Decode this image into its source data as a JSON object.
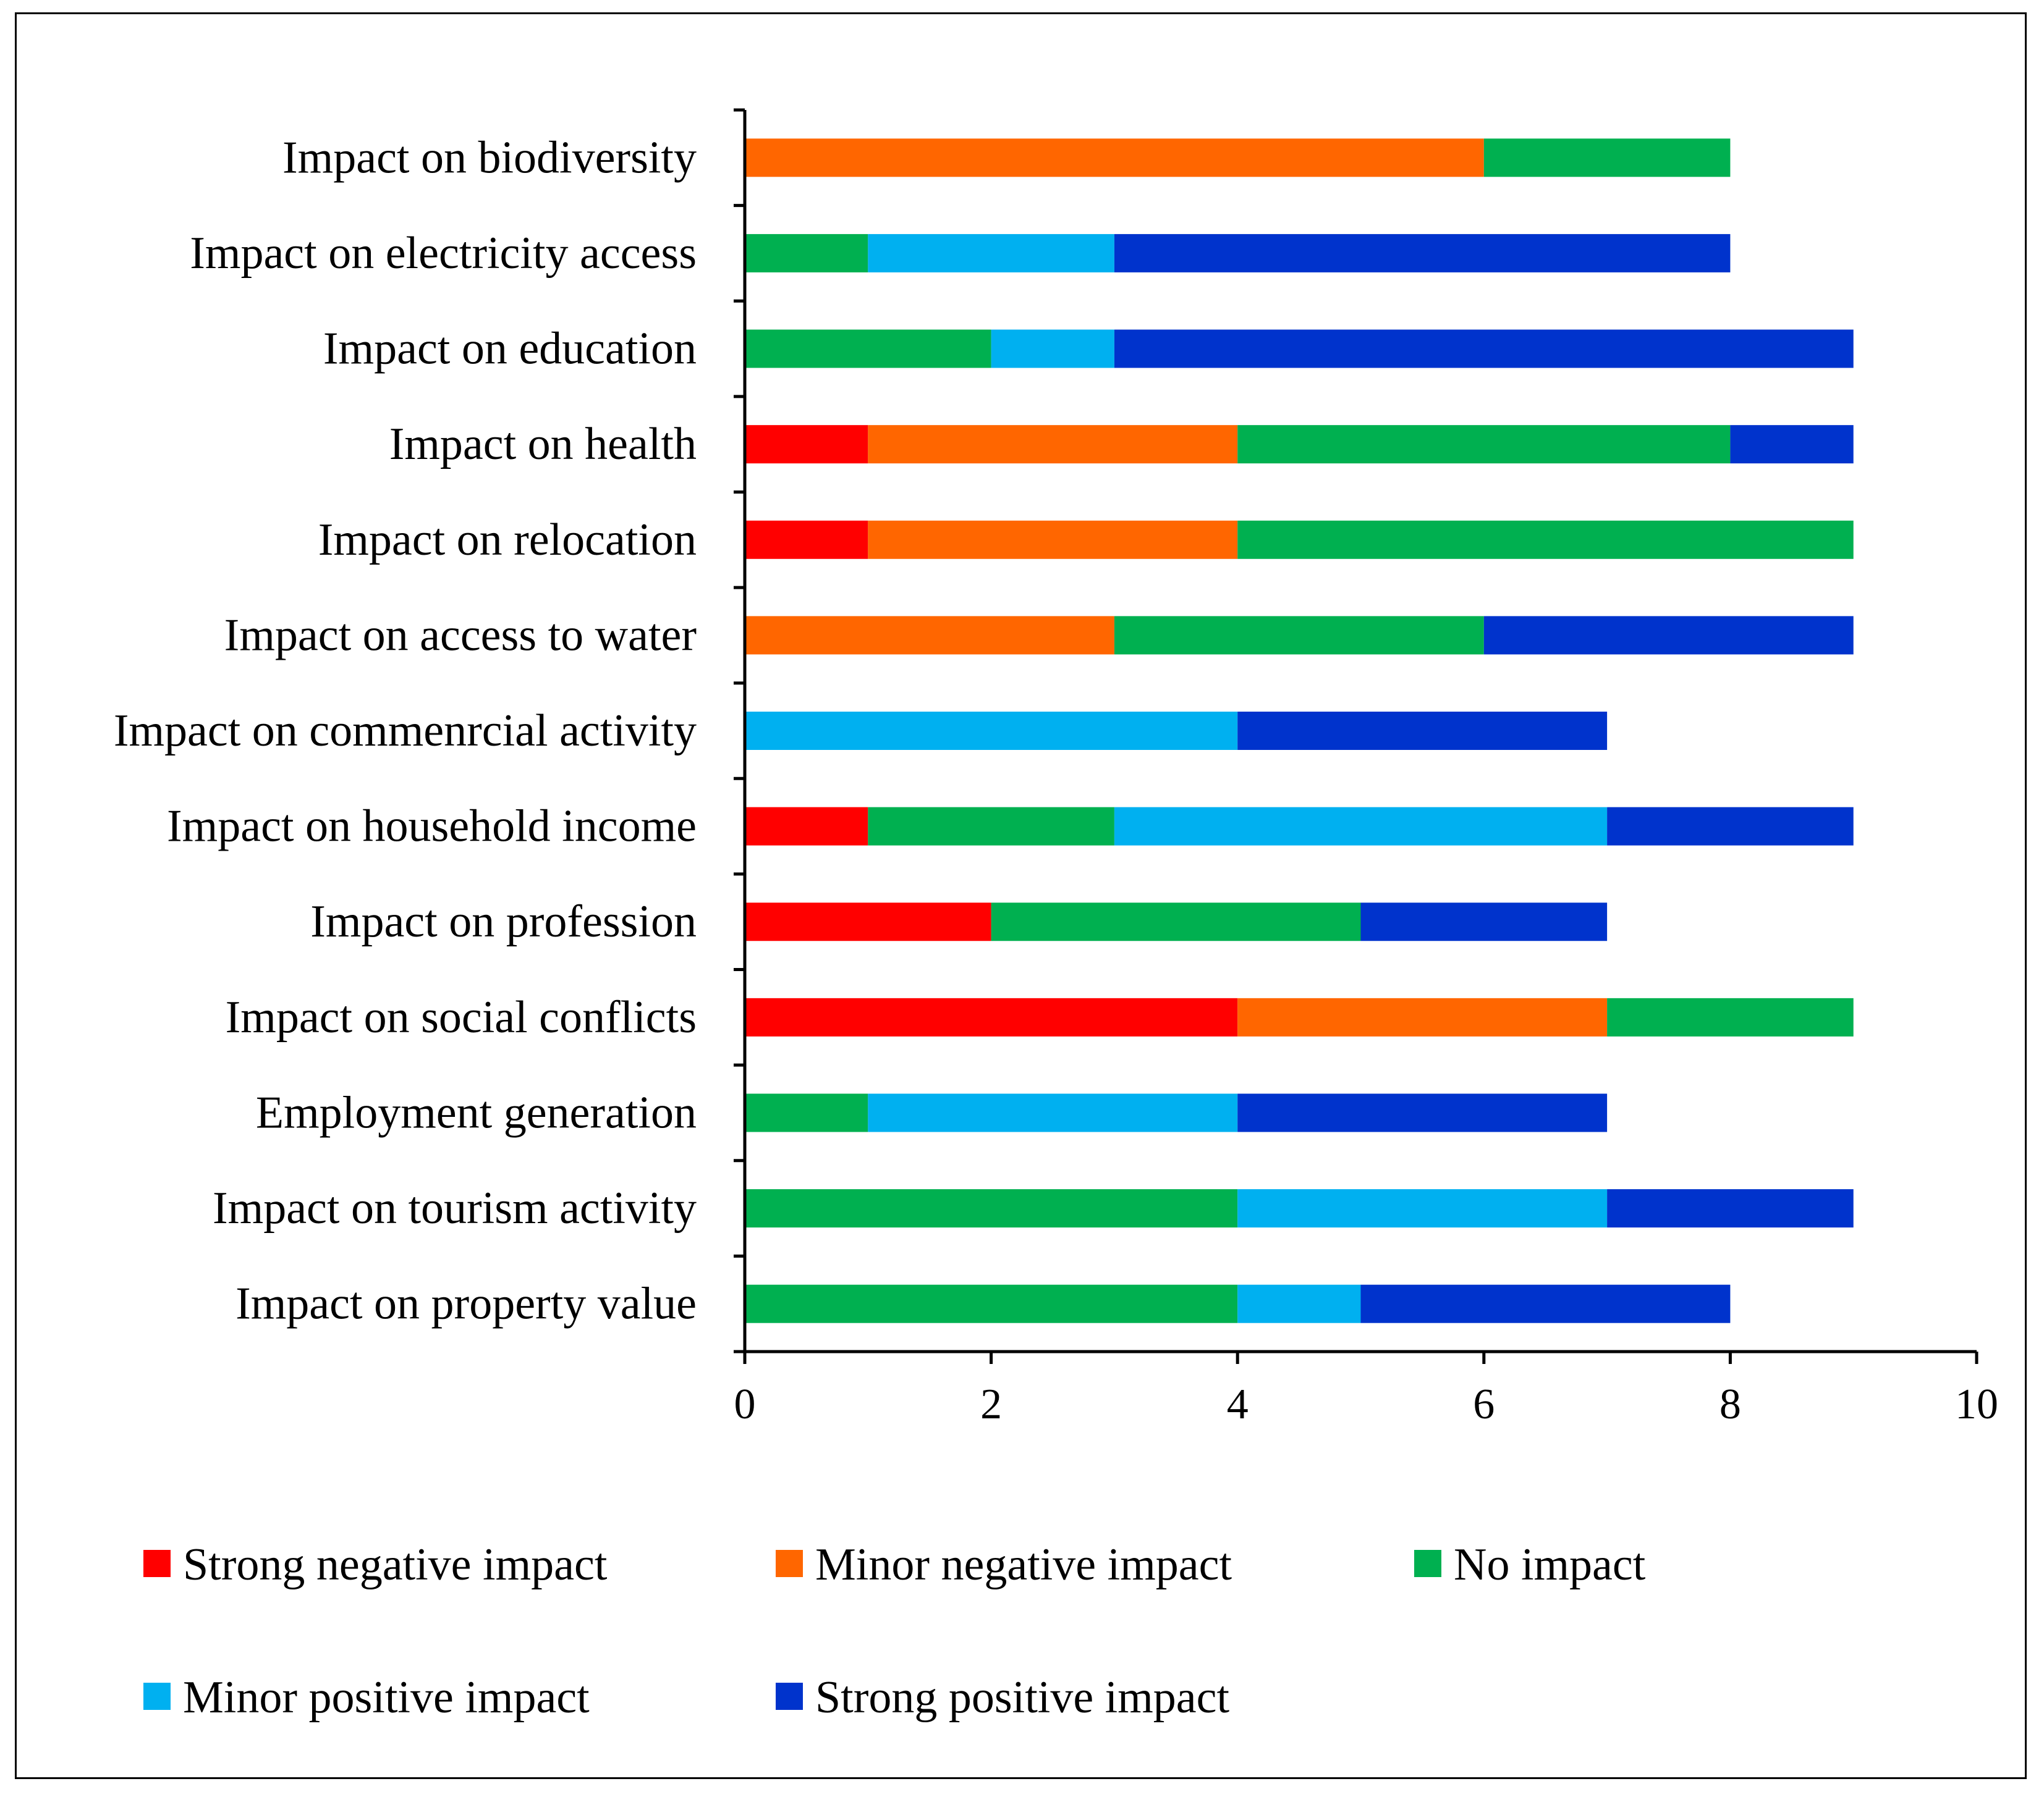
{
  "chart_data": {
    "type": "bar",
    "orientation": "horizontal",
    "stacked": true,
    "categories": [
      "Impact on biodiversity",
      "Impact on electricity access",
      "Impact on education",
      "Impact on health",
      "Impact on relocation",
      "Impact on access to water",
      "Impact on commenrcial activity",
      "Impact on household income",
      "Impact on profession",
      "Impact on social conflicts",
      "Employment generation",
      "Impact on tourism activity",
      "Impact on property value"
    ],
    "series": [
      {
        "name": "Strong negative impact",
        "color": "#ff0000",
        "values": [
          0,
          0,
          0,
          1,
          1,
          0,
          0,
          1,
          2,
          4,
          0,
          0,
          0
        ]
      },
      {
        "name": "Minor negative impact",
        "color": "#ff6600",
        "values": [
          6,
          0,
          0,
          3,
          3,
          3,
          0,
          0,
          0,
          3,
          0,
          0,
          0
        ]
      },
      {
        "name": "No impact",
        "color": "#00b050",
        "values": [
          2,
          1,
          2,
          4,
          5,
          3,
          0,
          2,
          3,
          2,
          1,
          4,
          4
        ]
      },
      {
        "name": "Minor positive impact",
        "color": "#00b0f0",
        "values": [
          0,
          2,
          1,
          0,
          0,
          0,
          4,
          4,
          0,
          0,
          3,
          3,
          1
        ]
      },
      {
        "name": "Strong positive impact",
        "color": "#0033cc",
        "values": [
          0,
          5,
          6,
          1,
          0,
          3,
          3,
          2,
          2,
          0,
          3,
          2,
          3
        ]
      }
    ],
    "xlim": [
      0,
      10
    ],
    "xticks": [
      "0",
      "2",
      "4",
      "6",
      "8",
      "10"
    ],
    "title": "",
    "xlabel": "",
    "ylabel": "",
    "grid": false,
    "legend_position": "bottom"
  }
}
